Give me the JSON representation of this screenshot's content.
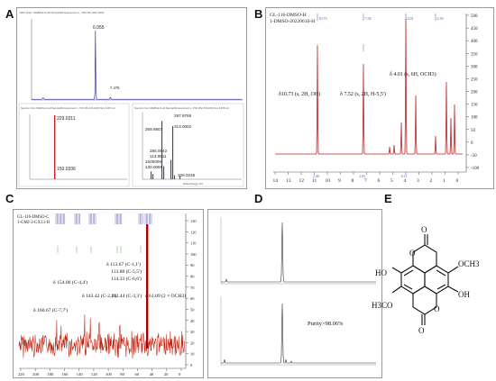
{
  "labels": {
    "A": "A",
    "B": "B",
    "C": "C",
    "D": "D",
    "E": "E"
  },
  "chart_data": [
    {
      "panel": "A-top",
      "type": "line",
      "header_line1": "DEC Scan: SAMPLE-N.raff Sample001 Experiment 1, -TOF MS (100-1000)",
      "peaks": [
        {
          "x": 6.055,
          "label": "6.055"
        },
        {
          "x": 7.476,
          "label": "7.476"
        }
      ],
      "xlim": [
        0,
        20
      ]
    },
    {
      "panel": "A-bottom-left",
      "type": "bar",
      "header": "Spectrum from SAMPLE-N.raff Sample001 Experiment 1, -TOF MS (100-1000) from 6.087 min",
      "peaks": [
        {
          "mz": 229.0311,
          "label": "229.0311"
        },
        {
          "mz": 150.0336,
          "label": "150.0336"
        }
      ]
    },
    {
      "panel": "A-bottom-right",
      "type": "bar",
      "header": "Spectrum from SAMPLE-N.raff Sample001 Experiment 1, -TOF MS2 (50-1000) from 6.055 min",
      "peaks": [
        {
          "label": "297.9766"
        },
        {
          "label": "269.9807"
        },
        {
          "label": "313.0002"
        },
        {
          "label": "285.0042"
        },
        {
          "label": "113.9911"
        },
        {
          "label": "1500009"
        },
        {
          "label": "130.0066"
        },
        {
          "label": "328.0236"
        }
      ],
      "xlabel": "Mass/Charge, Da"
    },
    {
      "panel": "B",
      "type": "line",
      "header_line1": "GL-116-DMSO-H",
      "header_line2": "1-DMSO-20220616-H",
      "xticks": [
        "14",
        "13",
        "12",
        "11",
        "10",
        "9",
        "8",
        "7",
        "6",
        "5",
        "4",
        "3",
        "2",
        "1",
        "0"
      ],
      "yticks": [
        "500",
        "450",
        "400",
        "350",
        "300",
        "250",
        "200",
        "150",
        "100",
        "50",
        "0",
        "-50",
        "-100"
      ],
      "top_shift_labels": [
        "10.73",
        "7.52",
        "4.01",
        "2.50"
      ],
      "annotations": [
        "δ10.73 (s, 2H, OH)",
        "δ 7.52 (s, 2H, H-5,5')",
        "δ 4.01 (s, 6H, OCH3)"
      ],
      "integrals": [
        "2.00",
        "2.03",
        "6.11"
      ]
    },
    {
      "panel": "C",
      "type": "line",
      "header_line1": "GL-116-DMSO-C",
      "header_line2": "1-GMJ-2-GX13-H",
      "xticks": [
        "220",
        "200",
        "180",
        "160",
        "140",
        "120",
        "100",
        "80",
        "60",
        "40",
        "20",
        "0"
      ],
      "yticks": [
        "130",
        "120",
        "110",
        "100",
        "90",
        "80",
        "70",
        "60",
        "50",
        "40",
        "30",
        "20",
        "10",
        "0"
      ],
      "annotations": [
        "δ 113.67 (C-1,1')",
        "113.88 (C-5,5')",
        "114.33 (C-6,6')",
        "δ 154.00 (C-4,4')",
        "δ 143.42 (C-2,2')",
        "142.44 (C-3,3')",
        "δ 160.67 (C-7,7')",
        "δ 61.09 (2 × OCH3)"
      ]
    },
    {
      "panel": "D",
      "type": "line",
      "traces": 2,
      "purity_label": "Purity>98.06%"
    }
  ],
  "structure": {
    "substituents": [
      "O",
      "O",
      "O",
      "O",
      "OCH3",
      "OH",
      "HO",
      "H3CO"
    ]
  }
}
